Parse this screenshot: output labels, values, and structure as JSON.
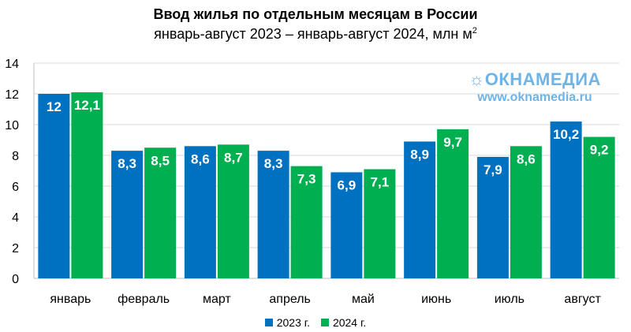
{
  "header": {
    "title": "Ввод жилья по отдельным месяцам в России",
    "subtitle_text": "январь-август 2023 – январь-август 2024, млн м",
    "subtitle_sup": "2"
  },
  "watermark": {
    "logo_text": "ОКНАМЕДИА",
    "url": "www.oknamedia.ru"
  },
  "legend": {
    "items": [
      {
        "label": "2023 г.",
        "color": "#0070c0"
      },
      {
        "label": "2024 г.",
        "color": "#00b050"
      }
    ]
  },
  "chart_data": {
    "type": "bar",
    "title": "Ввод жилья по отдельным месяцам в России",
    "subtitle": "январь-август 2023 – январь-август 2024, млн м2",
    "categories": [
      "январь",
      "февраль",
      "март",
      "апрель",
      "май",
      "июнь",
      "июль",
      "август"
    ],
    "series": [
      {
        "name": "2023 г.",
        "color": "#0070c0",
        "values": [
          12,
          8.3,
          8.6,
          8.3,
          6.9,
          8.9,
          7.9,
          10.2
        ],
        "labels": [
          "12",
          "8,3",
          "8,6",
          "8,3",
          "6,9",
          "8,9",
          "7,9",
          "10,2"
        ]
      },
      {
        "name": "2024 г.",
        "color": "#00b050",
        "values": [
          12.1,
          8.5,
          8.7,
          7.3,
          7.1,
          9.7,
          8.6,
          9.2
        ],
        "labels": [
          "12,1",
          "8,5",
          "8,7",
          "7,3",
          "7,1",
          "9,7",
          "8,6",
          "9,2"
        ]
      }
    ],
    "yticks": [
      0,
      2,
      4,
      6,
      8,
      10,
      12,
      14
    ],
    "ylim": [
      0,
      14
    ],
    "grid": true,
    "legend_position": "bottom"
  }
}
